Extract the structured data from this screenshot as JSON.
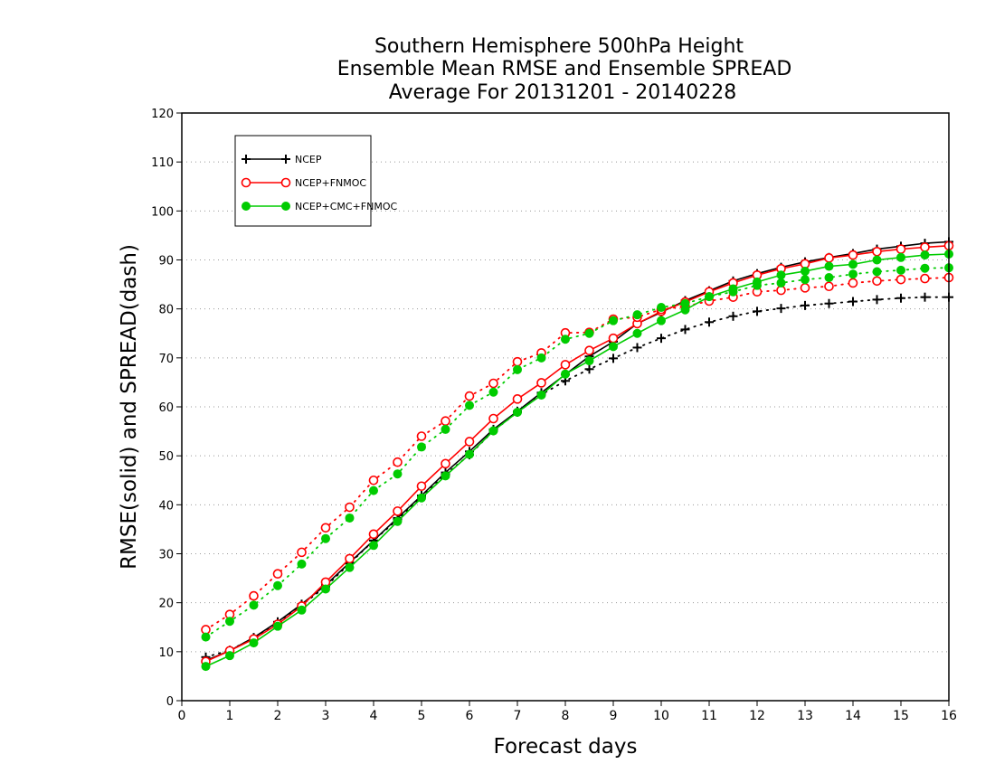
{
  "chart_data": {
    "type": "line",
    "title_lines": [
      "Southern Hemisphere 500hPa Height",
      "Ensemble Mean RMSE and Ensemble SPREAD",
      "Average For 20131201 - 20140228"
    ],
    "xlabel": "Forecast days",
    "ylabel": "RMSE(solid) and SPREAD(dash)",
    "xlim": [
      0,
      16
    ],
    "ylim": [
      0,
      120
    ],
    "x_ticks": [
      "0",
      "1",
      "2",
      "3",
      "4",
      "5",
      "6",
      "7",
      "8",
      "9",
      "10",
      "11",
      "12",
      "13",
      "14",
      "15",
      "16"
    ],
    "y_ticks": [
      "0",
      "10",
      "20",
      "30",
      "40",
      "50",
      "60",
      "70",
      "80",
      "90",
      "100",
      "110",
      "120"
    ],
    "grid": "horizontal dotted",
    "legend_position": "top-left",
    "x": [
      0.5,
      1,
      1.5,
      2,
      2.5,
      3,
      3.5,
      4,
      4.5,
      5,
      5.5,
      6,
      6.5,
      7,
      7.5,
      8,
      8.5,
      9,
      9.5,
      10,
      10.5,
      11,
      11.5,
      12,
      12.5,
      13,
      13.5,
      14,
      14.5,
      15,
      15.5,
      16
    ],
    "series": [
      {
        "name": "NCEP",
        "color": "#000000",
        "marker": "plus",
        "rmse": [
          8.2,
          10.2,
          12.9,
          16.1,
          19.7,
          23.6,
          28.2,
          32.7,
          37.3,
          41.9,
          46.6,
          50.9,
          55.4,
          59.1,
          62.9,
          66.6,
          70.3,
          73.3,
          77.0,
          79.3,
          81.7,
          83.7,
          85.7,
          87.2,
          88.5,
          89.6,
          90.5,
          91.3,
          92.2,
          92.8,
          93.4,
          93.7
        ],
        "spread": [
          8.9,
          10.3,
          12.8,
          16.0,
          19.5,
          23.3,
          28.0,
          32.7,
          37.0,
          41.5,
          46.2,
          50.2,
          55.1,
          58.9,
          62.5,
          65.3,
          67.7,
          69.9,
          72.1,
          74.0,
          75.8,
          77.3,
          78.5,
          79.5,
          80.1,
          80.7,
          81.1,
          81.5,
          81.9,
          82.2,
          82.4,
          82.4
        ]
      },
      {
        "name": "NCEP+FNMOC",
        "color": "#ff0000",
        "marker": "open-circle",
        "rmse": [
          8.0,
          10.2,
          12.6,
          15.6,
          19.3,
          24.2,
          29.0,
          34.0,
          38.7,
          43.8,
          48.4,
          52.9,
          57.6,
          61.6,
          64.9,
          68.6,
          71.5,
          74.0,
          77.0,
          79.5,
          81.4,
          83.5,
          85.3,
          86.9,
          88.2,
          89.2,
          90.4,
          91.0,
          91.7,
          92.2,
          92.6,
          92.9
        ],
        "spread": [
          14.5,
          17.6,
          21.4,
          25.9,
          30.3,
          35.3,
          39.5,
          45.0,
          48.7,
          54.0,
          57.1,
          62.2,
          64.8,
          69.2,
          71.0,
          75.1,
          75.2,
          77.9,
          78.3,
          79.9,
          80.5,
          81.6,
          82.4,
          83.5,
          83.8,
          84.3,
          84.6,
          85.3,
          85.7,
          86.0,
          86.2,
          86.4
        ]
      },
      {
        "name": "NCEP+CMC+FNMOC",
        "color": "#00cc00",
        "marker": "filled-circle",
        "rmse": [
          7.0,
          9.2,
          11.8,
          15.2,
          18.5,
          22.8,
          27.2,
          31.7,
          36.6,
          41.4,
          45.9,
          50.3,
          55.1,
          58.9,
          62.4,
          66.7,
          69.4,
          72.3,
          75.0,
          77.6,
          79.8,
          82.5,
          84.1,
          85.5,
          86.9,
          87.7,
          88.7,
          89.1,
          90.0,
          90.5,
          91.0,
          91.2
        ],
        "spread": [
          13.0,
          16.2,
          19.5,
          23.5,
          27.9,
          33.1,
          37.3,
          42.9,
          46.3,
          51.8,
          55.4,
          60.3,
          63.0,
          67.6,
          70.0,
          73.8,
          75.0,
          77.6,
          78.8,
          80.3,
          81.1,
          82.5,
          83.5,
          84.8,
          85.3,
          86.0,
          86.4,
          87.1,
          87.6,
          87.9,
          88.3,
          88.4
        ]
      }
    ]
  }
}
